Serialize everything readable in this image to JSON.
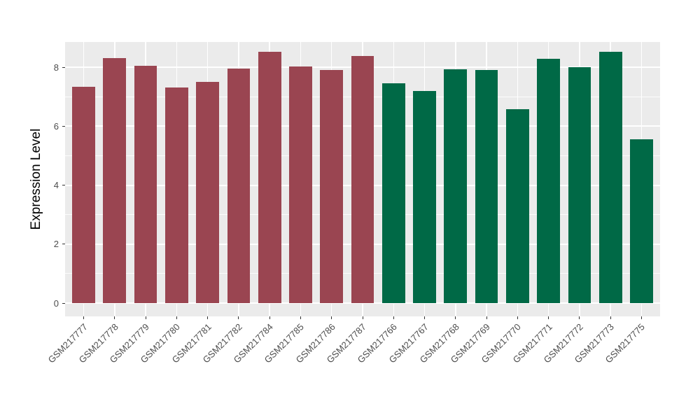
{
  "chart_data": {
    "type": "bar",
    "title": "",
    "xlabel": "",
    "ylabel": "Expression Level",
    "categories": [
      "GSM217777",
      "GSM217778",
      "GSM217779",
      "GSM217780",
      "GSM217781",
      "GSM217782",
      "GSM217784",
      "GSM217785",
      "GSM217786",
      "GSM217787",
      "GSM217766",
      "GSM217767",
      "GSM217768",
      "GSM217769",
      "GSM217770",
      "GSM217771",
      "GSM217772",
      "GSM217773",
      "GSM217775"
    ],
    "values": [
      7.35,
      8.32,
      8.05,
      7.32,
      7.5,
      7.95,
      8.53,
      8.03,
      7.92,
      8.38,
      7.47,
      7.2,
      7.94,
      7.92,
      6.58,
      8.28,
      8.01,
      8.52,
      5.57
    ],
    "groups": [
      "group1",
      "group1",
      "group1",
      "group1",
      "group1",
      "group1",
      "group1",
      "group1",
      "group1",
      "group1",
      "group2",
      "group2",
      "group2",
      "group2",
      "group2",
      "group2",
      "group2",
      "group2",
      "group2"
    ],
    "group_colors": {
      "group1": "#9A4551",
      "group2": "#006946"
    },
    "yticks": [
      0,
      2,
      4,
      6,
      8
    ],
    "yticks_minor": [
      1,
      3,
      5,
      7
    ],
    "ylim": [
      -0.45,
      8.86
    ],
    "grid": true,
    "legend": "none",
    "colors": {
      "panel_bg": "#EBEBEB",
      "grid_major": "#FFFFFF",
      "grid_minor": "#FFFFFF",
      "tick_label": "#4D4D4D",
      "axis_title": "#000000"
    }
  }
}
